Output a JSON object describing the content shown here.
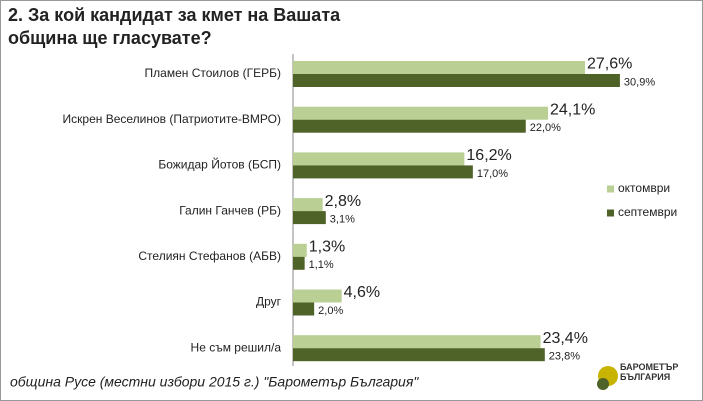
{
  "chart_data": {
    "type": "bar",
    "orientation": "horizontal",
    "title": "2. За кой кандидат за кмет на Вашата община ще гласувате?",
    "categories": [
      "Пламен Стоилов (ГЕРБ)",
      "Искрен Веселинов (Патриотите-ВМРО)",
      "Божидар Йотов (БСП)",
      "Галин Ганчев (РБ)",
      "Стелиян Стефанов (АБВ)",
      "Друг",
      "Не съм решил/а"
    ],
    "series": [
      {
        "name": "октомври",
        "color": "#b9cf93",
        "values": [
          27.6,
          24.1,
          16.2,
          2.8,
          1.3,
          4.6,
          23.4
        ],
        "value_labels": [
          "27,6%",
          "24,1%",
          "16,2%",
          "2,8%",
          "1,3%",
          "4,6%",
          "23,4%"
        ]
      },
      {
        "name": "септември",
        "color": "#4f6228",
        "values": [
          30.9,
          22.0,
          17.0,
          3.1,
          1.1,
          2.0,
          23.8
        ],
        "value_labels": [
          "30,9%",
          "22,0%",
          "17,0%",
          "3,1%",
          "1,1%",
          "2,0%",
          "23,8%"
        ]
      }
    ],
    "note": "община Русе (местни избори 2015 г.) \"Барометър България\"",
    "logo": "БАРОМЕТЪР БЪЛГАРИЯ"
  }
}
